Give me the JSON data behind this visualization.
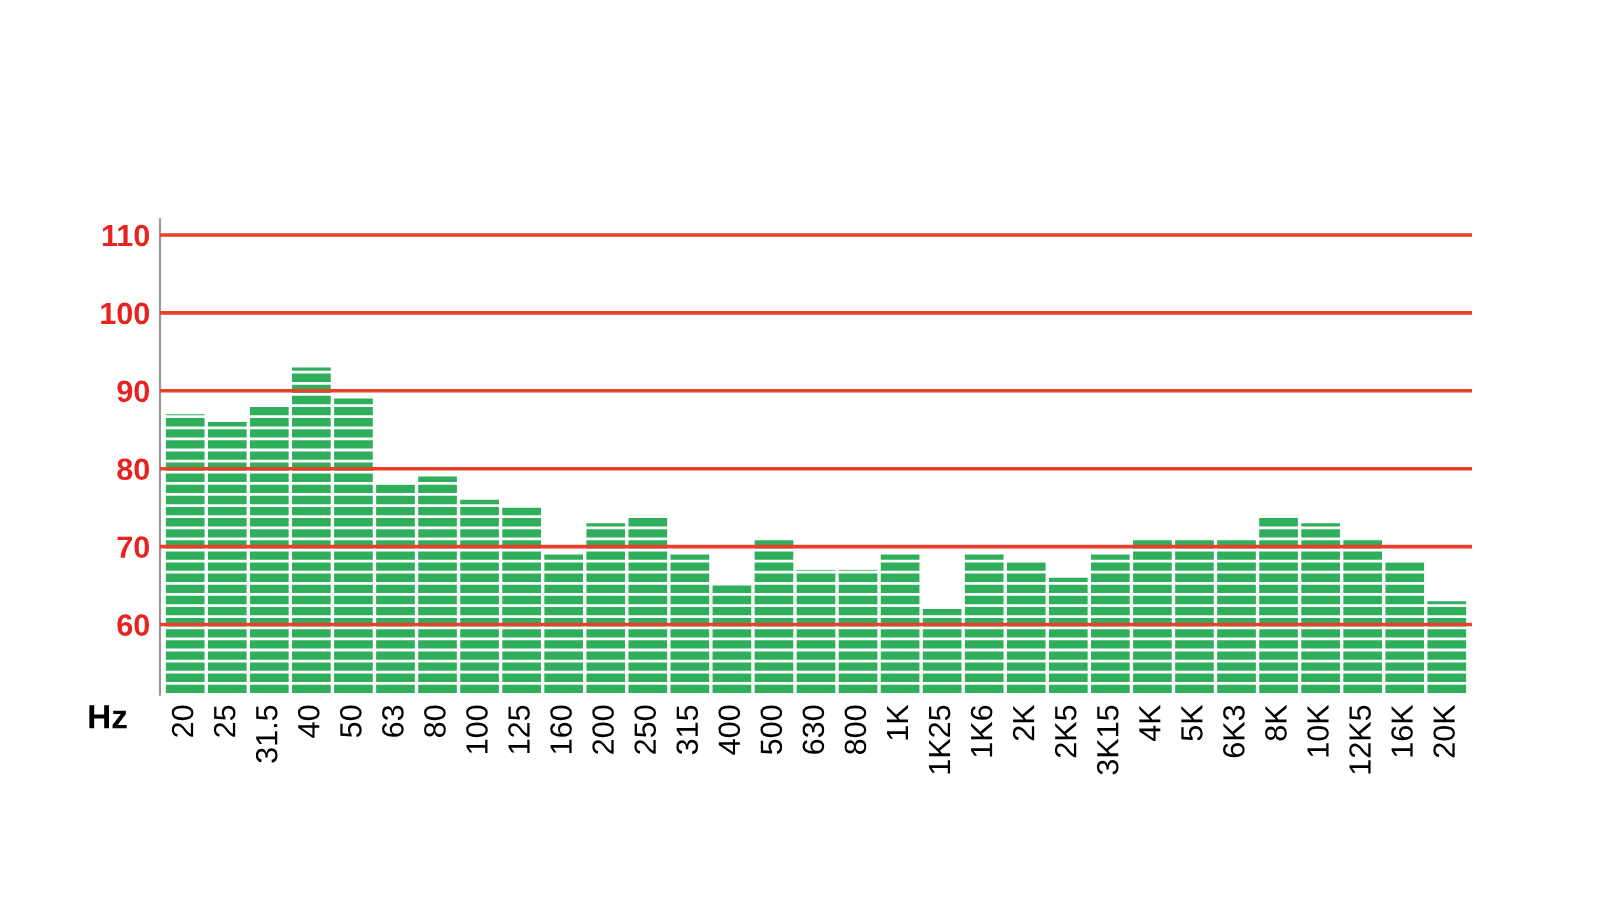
{
  "chart_data": {
    "type": "bar",
    "xlabel": "Hz",
    "categories": [
      "20",
      "25",
      "31.5",
      "40",
      "50",
      "63",
      "80",
      "100",
      "125",
      "160",
      "200",
      "250",
      "315",
      "400",
      "500",
      "630",
      "800",
      "1K",
      "1K25",
      "1K6",
      "2K",
      "2K5",
      "3K15",
      "4K",
      "5K",
      "6K3",
      "8K",
      "10K",
      "12K5",
      "16K",
      "20K"
    ],
    "values": [
      87,
      86,
      88,
      93,
      89,
      78,
      79,
      76,
      75,
      69,
      73,
      74,
      69,
      65,
      71,
      67,
      67,
      69,
      62,
      69,
      68,
      66,
      69,
      71,
      71,
      71,
      74,
      73,
      71,
      68,
      63
    ],
    "color": "#2fae5c",
    "ylim": [
      51,
      112
    ],
    "yticks": [
      60,
      70,
      80,
      90,
      100,
      110
    ],
    "grid": "y"
  }
}
